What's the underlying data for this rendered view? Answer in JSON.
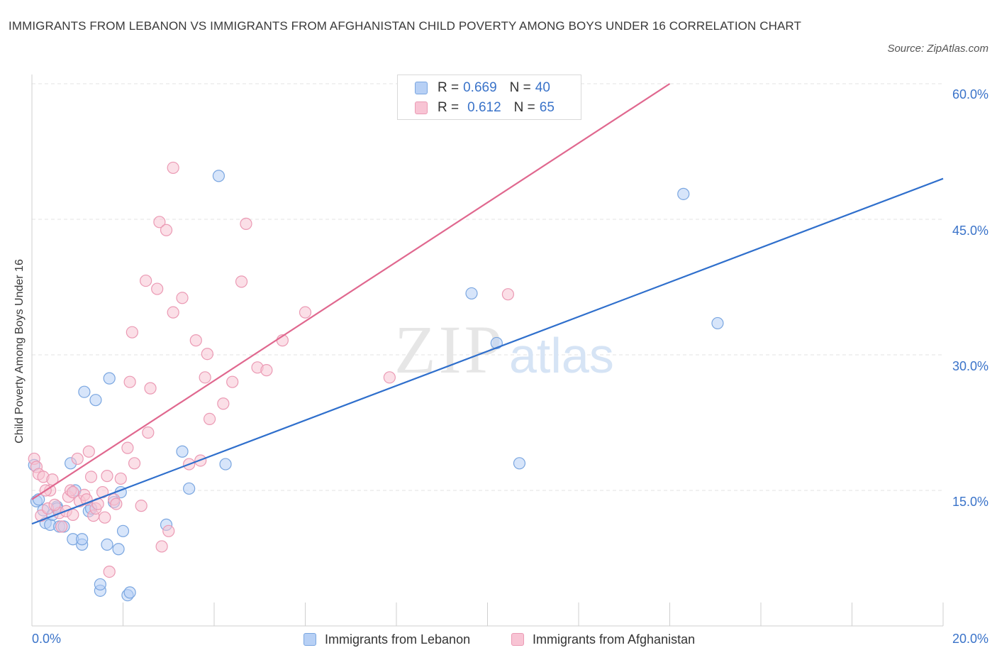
{
  "title": "IMMIGRANTS FROM LEBANON VS IMMIGRANTS FROM AFGHANISTAN CHILD POVERTY AMONG BOYS UNDER 16 CORRELATION CHART",
  "source": "Source: ZipAtlas.com",
  "watermark": {
    "zip": "ZIP",
    "atlas": "atlas"
  },
  "colors": {
    "lebanon_fill": "#b7d0f5",
    "lebanon_stroke": "#7aa6e0",
    "lebanon_line": "#2f6fcc",
    "afghan_fill": "#f8c4d4",
    "afghan_stroke": "#eb9ab4",
    "afghan_line": "#e0688f",
    "tick_text": "#3a73c9"
  },
  "legend": {
    "r_label": "R =",
    "n_label": "N =",
    "lebanon": {
      "r": "0.669",
      "n": "40"
    },
    "afghanistan": {
      "r": "0.612",
      "n": "65"
    }
  },
  "chart_data": {
    "type": "scatter",
    "title": "IMMIGRANTS FROM LEBANON VS IMMIGRANTS FROM AFGHANISTAN CHILD POVERTY AMONG BOYS UNDER 16 CORRELATION CHART",
    "xlabel": "",
    "ylabel": "Child Poverty Among Boys Under 16",
    "xlim": [
      0,
      20
    ],
    "ylim": [
      0,
      60
    ],
    "x_tick_labels": [
      "0.0%",
      "20.0%"
    ],
    "y_ticks": [
      15,
      30,
      45,
      60
    ],
    "y_tick_labels": [
      "15.0%",
      "30.0%",
      "45.0%",
      "60.0%"
    ],
    "grid": true,
    "legend_position": "top-center",
    "series": [
      {
        "name": "Immigrants from Lebanon",
        "trendline": {
          "x": [
            0,
            20
          ],
          "y": [
            11.3,
            49.5
          ]
        },
        "points": [
          [
            0.05,
            17.8
          ],
          [
            0.1,
            13.8
          ],
          [
            0.15,
            14.0
          ],
          [
            0.25,
            12.8
          ],
          [
            0.3,
            11.4
          ],
          [
            0.4,
            11.2
          ],
          [
            0.45,
            12.3
          ],
          [
            0.55,
            13.2
          ],
          [
            0.6,
            11.0
          ],
          [
            0.7,
            11.0
          ],
          [
            0.85,
            18.0
          ],
          [
            0.9,
            9.6
          ],
          [
            0.95,
            15.0
          ],
          [
            1.1,
            9.0
          ],
          [
            1.1,
            9.6
          ],
          [
            1.15,
            25.9
          ],
          [
            1.25,
            12.7
          ],
          [
            1.3,
            13.0
          ],
          [
            1.4,
            25.0
          ],
          [
            1.5,
            3.9
          ],
          [
            1.5,
            4.6
          ],
          [
            1.65,
            9.0
          ],
          [
            1.7,
            27.4
          ],
          [
            1.8,
            13.7
          ],
          [
            1.9,
            8.5
          ],
          [
            1.95,
            14.8
          ],
          [
            2.0,
            10.5
          ],
          [
            2.1,
            3.4
          ],
          [
            2.15,
            3.7
          ],
          [
            2.95,
            11.2
          ],
          [
            3.3,
            19.3
          ],
          [
            3.45,
            15.2
          ],
          [
            4.1,
            49.8
          ],
          [
            4.25,
            17.9
          ],
          [
            9.65,
            36.8
          ],
          [
            10.2,
            31.3
          ],
          [
            10.7,
            18.0
          ],
          [
            14.3,
            47.8
          ],
          [
            15.05,
            33.5
          ],
          [
            0.55,
            13.0
          ]
        ]
      },
      {
        "name": "Immigrants from Afghanistan",
        "trendline": {
          "x": [
            0,
            14
          ],
          "y": [
            14.0,
            60.0
          ]
        },
        "points": [
          [
            0.05,
            18.5
          ],
          [
            0.1,
            17.6
          ],
          [
            0.15,
            16.8
          ],
          [
            0.2,
            12.2
          ],
          [
            0.25,
            16.5
          ],
          [
            0.35,
            13.0
          ],
          [
            0.4,
            15.0
          ],
          [
            0.45,
            16.2
          ],
          [
            0.6,
            12.5
          ],
          [
            0.65,
            11.0
          ],
          [
            0.75,
            12.7
          ],
          [
            0.8,
            14.3
          ],
          [
            0.85,
            15.0
          ],
          [
            0.9,
            14.8
          ],
          [
            0.9,
            12.3
          ],
          [
            1.0,
            18.5
          ],
          [
            1.05,
            13.8
          ],
          [
            1.15,
            14.5
          ],
          [
            1.2,
            14.0
          ],
          [
            1.25,
            19.3
          ],
          [
            1.3,
            16.5
          ],
          [
            1.35,
            12.2
          ],
          [
            1.4,
            13.0
          ],
          [
            1.45,
            13.5
          ],
          [
            1.55,
            14.8
          ],
          [
            1.6,
            12.0
          ],
          [
            1.65,
            16.6
          ],
          [
            1.7,
            6.0
          ],
          [
            1.8,
            14.0
          ],
          [
            1.85,
            13.5
          ],
          [
            1.95,
            16.3
          ],
          [
            2.1,
            19.7
          ],
          [
            2.15,
            27.0
          ],
          [
            2.2,
            32.5
          ],
          [
            2.25,
            18.0
          ],
          [
            2.4,
            13.3
          ],
          [
            2.5,
            38.2
          ],
          [
            2.55,
            21.4
          ],
          [
            2.6,
            26.3
          ],
          [
            2.75,
            37.3
          ],
          [
            2.8,
            44.7
          ],
          [
            2.85,
            8.8
          ],
          [
            2.95,
            43.8
          ],
          [
            3.0,
            10.5
          ],
          [
            3.1,
            50.7
          ],
          [
            3.1,
            34.7
          ],
          [
            3.3,
            36.3
          ],
          [
            3.45,
            17.9
          ],
          [
            3.6,
            31.6
          ],
          [
            3.7,
            18.3
          ],
          [
            3.8,
            27.5
          ],
          [
            3.85,
            30.1
          ],
          [
            3.9,
            22.9
          ],
          [
            4.2,
            24.6
          ],
          [
            4.4,
            27.0
          ],
          [
            4.6,
            38.1
          ],
          [
            4.7,
            44.5
          ],
          [
            4.95,
            28.6
          ],
          [
            5.15,
            28.3
          ],
          [
            5.5,
            31.6
          ],
          [
            6.0,
            34.7
          ],
          [
            7.85,
            27.5
          ],
          [
            10.45,
            36.7
          ],
          [
            0.5,
            13.4
          ],
          [
            0.3,
            15.0
          ]
        ]
      }
    ]
  },
  "bottom_legend": {
    "lebanon": "Immigrants from Lebanon",
    "afghanistan": "Immigrants from Afghanistan"
  }
}
